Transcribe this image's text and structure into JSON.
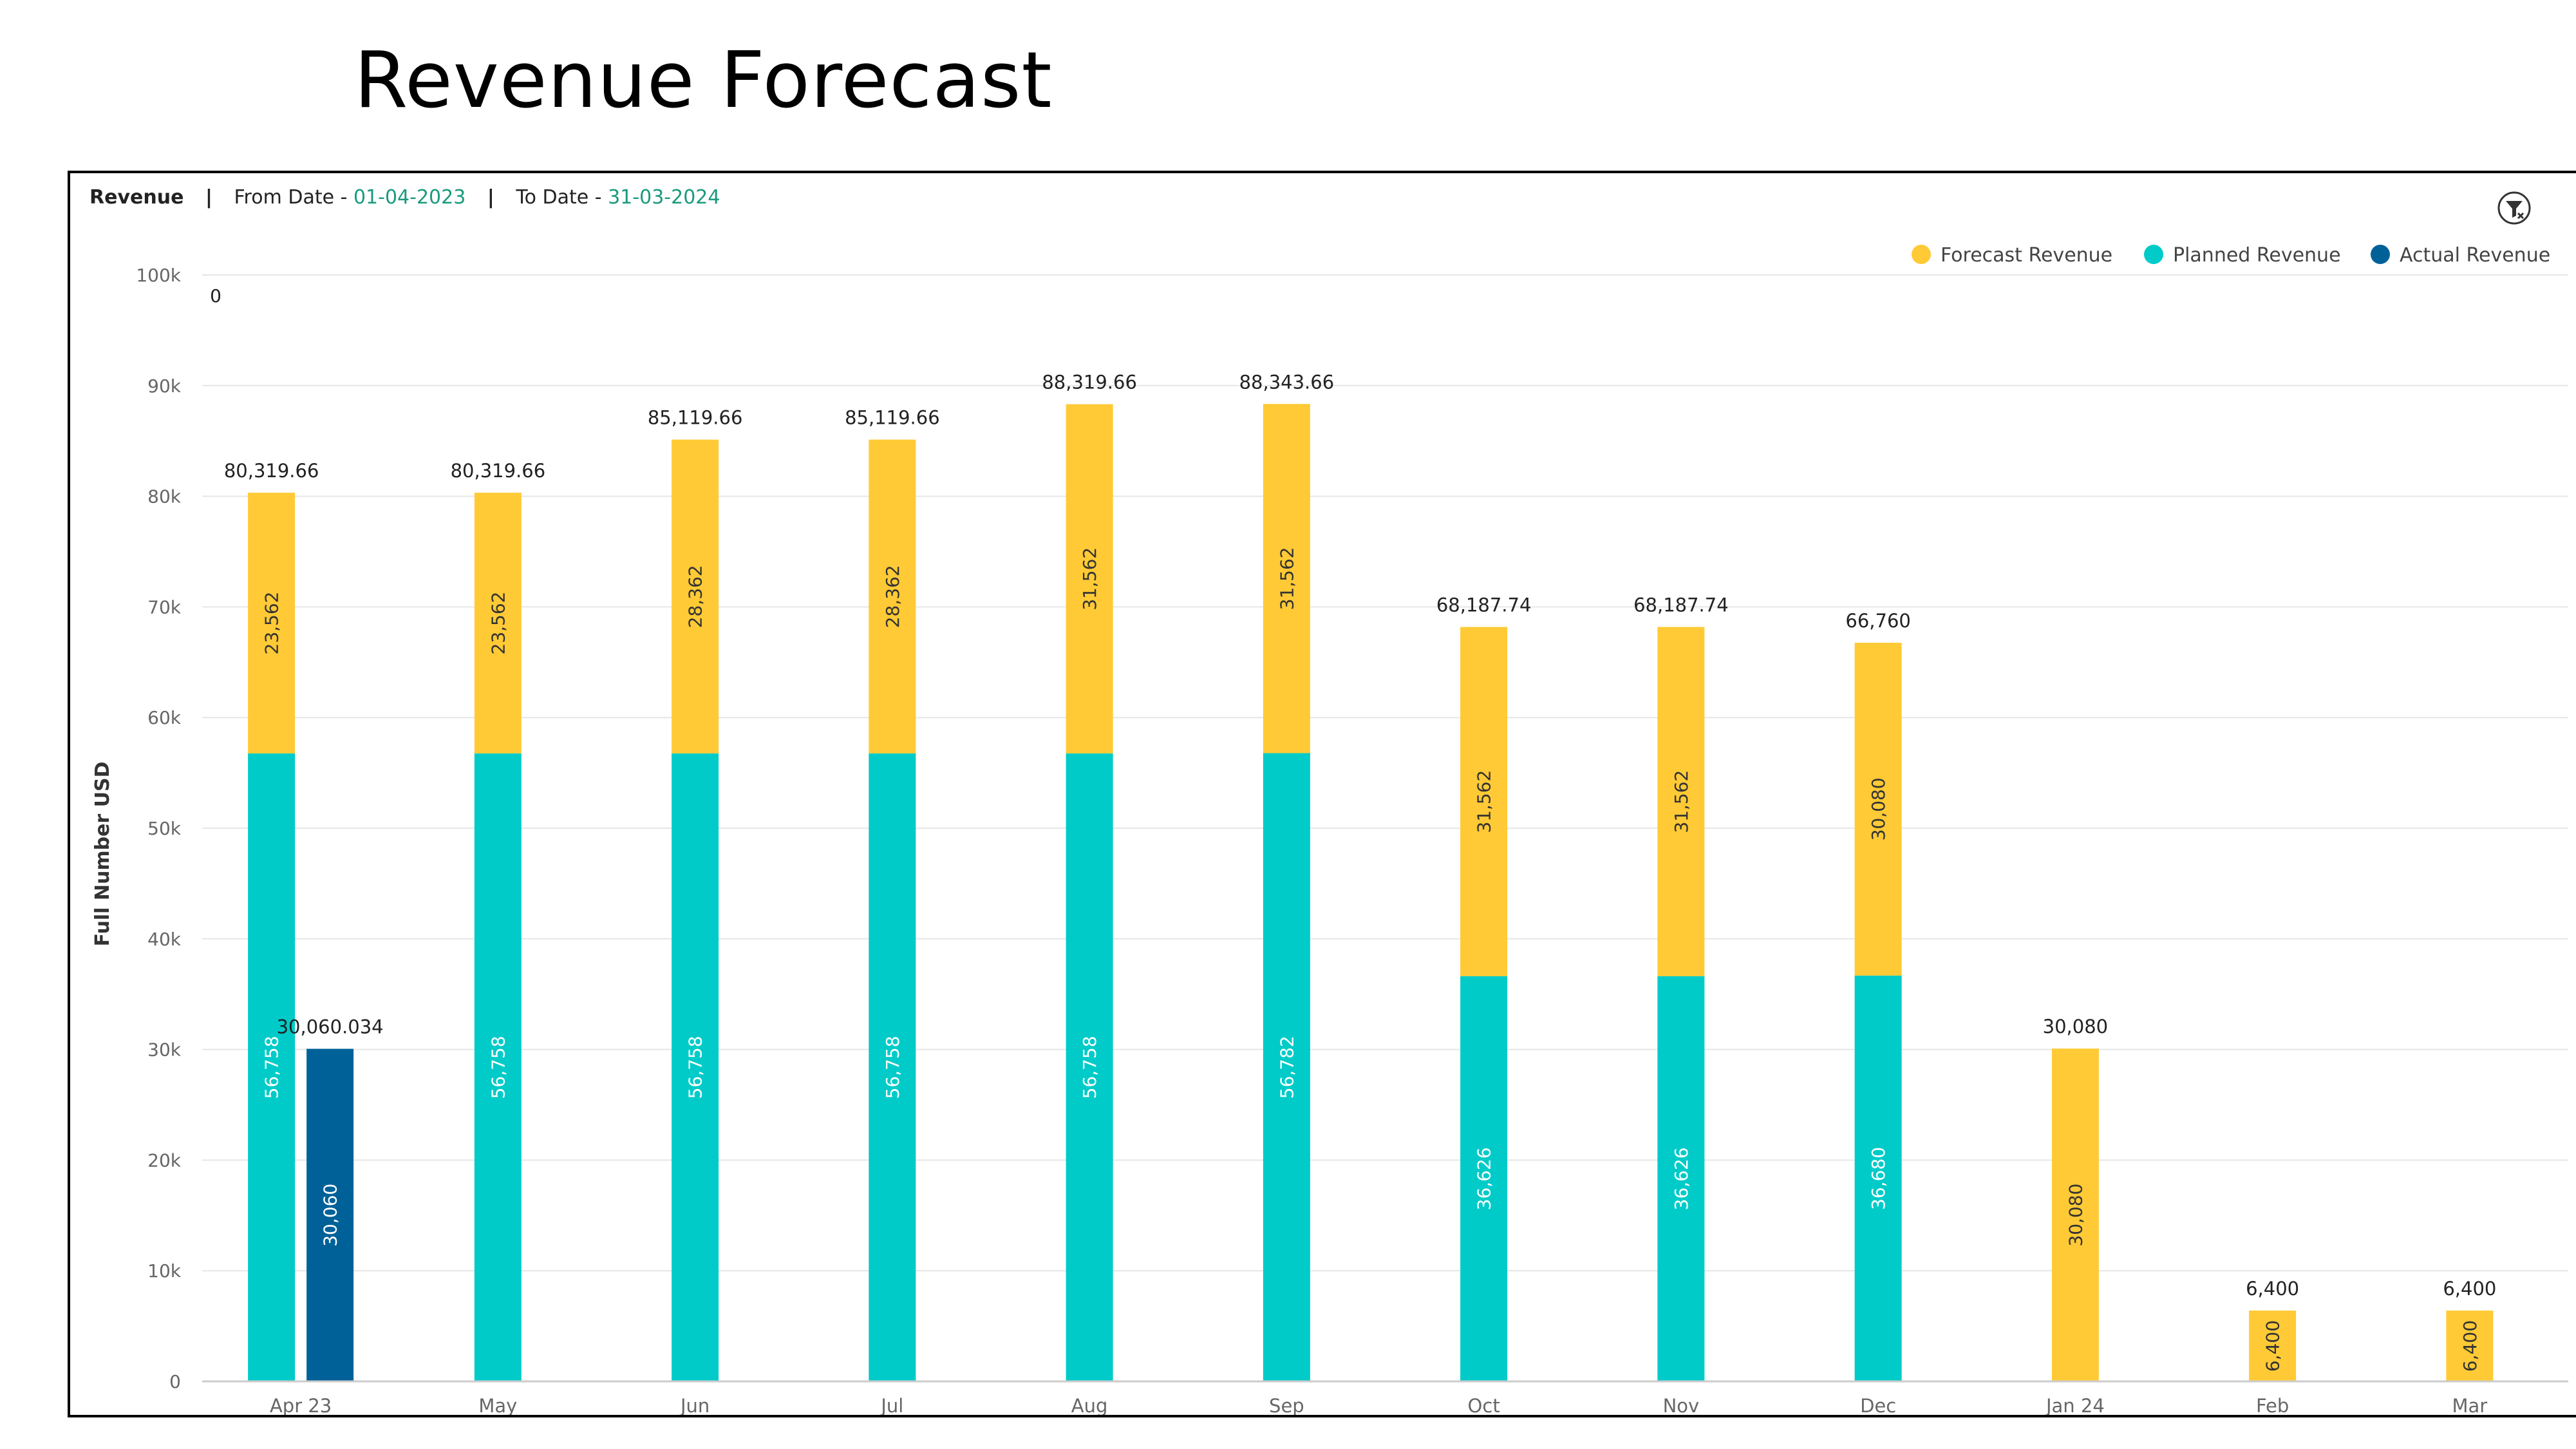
{
  "slide": {
    "title": "Revenue Forecast"
  },
  "header": {
    "title": "Revenue",
    "separator": "|",
    "from_label": "From Date -",
    "from_date": "01-04-2023",
    "to_label": "To Date -",
    "to_date": "31-03-2024"
  },
  "filter_icon": "filter-icon",
  "colors": {
    "forecast": "#FFCA35",
    "planned": "#00CBC8",
    "actual": "#006199",
    "grid": "#E6E6E6",
    "axis_text": "#666666",
    "date_accent": "#1a9a7e"
  },
  "chart_data": {
    "type": "bar",
    "title": "",
    "xlabel": "",
    "ylabel": "Full Number USD",
    "ylim": [
      0,
      100000
    ],
    "y_ticks": [
      0,
      10000,
      20000,
      30000,
      40000,
      50000,
      60000,
      70000,
      80000,
      90000,
      100000
    ],
    "y_tick_labels": [
      "0",
      "10k",
      "20k",
      "30k",
      "40k",
      "50k",
      "60k",
      "70k",
      "80k",
      "90k",
      "100k"
    ],
    "grid": true,
    "legend_position": "top-right",
    "categories": [
      "Apr 23",
      "May",
      "Jun",
      "Jul",
      "Aug",
      "Sep",
      "Oct",
      "Nov",
      "Dec",
      "Jan 24",
      "Feb",
      "Mar"
    ],
    "series": [
      {
        "name": "Planned Revenue",
        "stack": "forecast",
        "values": [
          56758,
          56758,
          56758,
          56758,
          56758,
          56782,
          36626,
          36626,
          36680,
          null,
          null,
          null
        ],
        "labels": [
          "56,758",
          "56,758",
          "56,758",
          "56,758",
          "56,758",
          "56,782",
          "36,626",
          "36,626",
          "36,680",
          null,
          null,
          null
        ]
      },
      {
        "name": "Forecast Revenue",
        "stack": "forecast",
        "values": [
          23562,
          23562,
          28362,
          28362,
          31562,
          31562,
          31562,
          31562,
          30080,
          30080,
          6400,
          6400
        ],
        "labels": [
          "23,562",
          "23,562",
          "28,362",
          "28,362",
          "31,562",
          "31,562",
          "31,562",
          "31,562",
          "30,080",
          "30,080",
          "6,400",
          "6,400"
        ]
      },
      {
        "name": "Actual Revenue",
        "stack": "actual",
        "values": [
          30060,
          null,
          null,
          null,
          null,
          null,
          null,
          null,
          null,
          null,
          null,
          null
        ],
        "labels": [
          "30,060",
          null,
          null,
          null,
          null,
          null,
          null,
          null,
          null,
          null,
          null,
          null
        ]
      }
    ],
    "totals": {
      "forecast_stack": [
        80319.66,
        80319.66,
        85119.66,
        85119.66,
        88319.66,
        88343.66,
        68187.74,
        68187.74,
        66760,
        30080,
        6400,
        6400
      ],
      "forecast_stack_labels": [
        "80,319.66",
        "80,319.66",
        "85,119.66",
        "85,119.66",
        "88,319.66",
        "88,343.66",
        "68,187.74",
        "68,187.74",
        "66,760",
        "30,080",
        "6,400",
        "6,400"
      ],
      "actual_stack_labels": [
        "30,060.034",
        null,
        null,
        null,
        null,
        null,
        null,
        null,
        null,
        null,
        null,
        null
      ]
    },
    "legend": [
      "Forecast Revenue",
      "Planned Revenue",
      "Actual Revenue"
    ],
    "annotations": [
      "0"
    ]
  }
}
